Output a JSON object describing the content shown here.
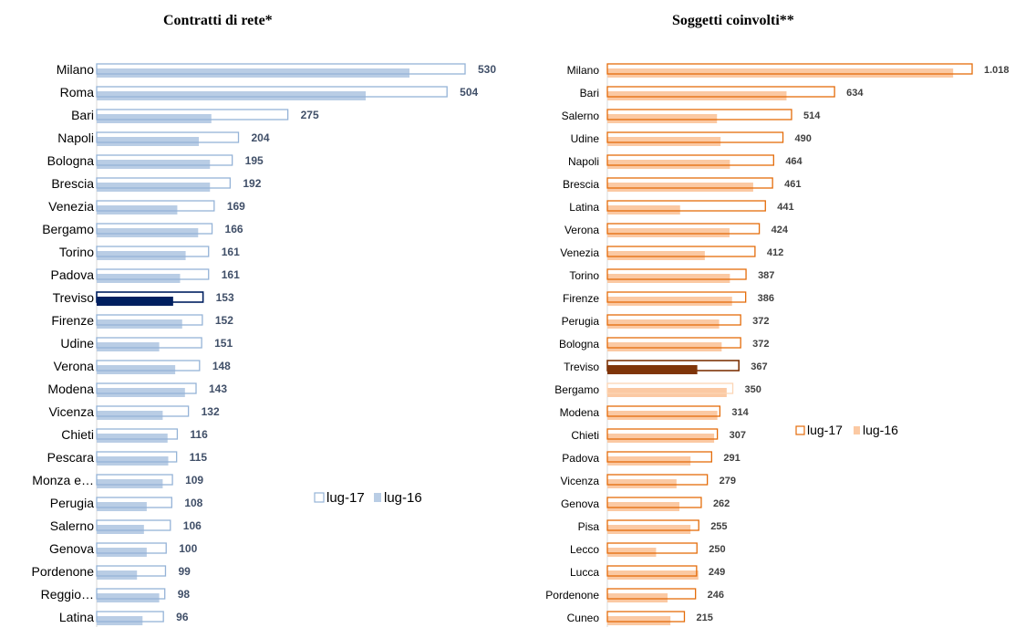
{
  "chart_data": [
    {
      "type": "bar",
      "orientation": "horizontal",
      "title": "Contratti di rete*",
      "categories": [
        "Milano",
        "Roma",
        "Bari",
        "Napoli",
        "Bologna",
        "Brescia",
        "Venezia",
        "Bergamo",
        "Torino",
        "Padova",
        "Treviso",
        "Firenze",
        "Udine",
        "Verona",
        "Modena",
        "Vicenza",
        "Chieti",
        "Pescara",
        "Monza e…",
        "Perugia",
        "Salerno",
        "Genova",
        "Pordenone",
        "Reggio…",
        "Latina"
      ],
      "series": [
        {
          "name": "lug-17",
          "values": [
            530,
            504,
            275,
            204,
            195,
            192,
            169,
            166,
            161,
            161,
            153,
            152,
            151,
            148,
            143,
            132,
            116,
            115,
            109,
            108,
            106,
            100,
            99,
            98,
            96
          ]
        },
        {
          "name": "lug-16",
          "values": [
            450,
            387,
            165,
            147,
            163,
            163,
            116,
            146,
            128,
            120,
            110,
            123,
            90,
            113,
            127,
            95,
            102,
            103,
            95,
            72,
            68,
            72,
            58,
            90,
            66
          ]
        }
      ],
      "value_labels": [
        "530",
        "504",
        "275",
        "204",
        "195",
        "192",
        "169",
        "166",
        "161",
        "161",
        "153",
        "152",
        "151",
        "148",
        "143",
        "132",
        "116",
        "115",
        "109",
        "108",
        "106",
        "100",
        "99",
        "98",
        "96"
      ],
      "highlight": "Treviso",
      "legend_position": "right",
      "colors": {
        "lug17_border": "#95b3d7",
        "lug16_fill": "#b9cde5",
        "highlight_border": "#002060",
        "highlight_fill": "#002060",
        "label": "#404f68"
      }
    },
    {
      "type": "bar",
      "orientation": "horizontal",
      "title": "Soggetti coinvolti**",
      "categories": [
        "Milano",
        "Bari",
        "Salerno",
        "Udine",
        "Napoli",
        "Brescia",
        "Latina",
        "Verona",
        "Venezia",
        "Torino",
        "Firenze",
        "Perugia",
        "Bologna",
        "Treviso",
        "Bergamo",
        "Modena",
        "Chieti",
        "Padova",
        "Vicenza",
        "Genova",
        "Pisa",
        "Lecco",
        "Lucca",
        "Pordenone",
        "Cuneo"
      ],
      "series": [
        {
          "name": "lug-17",
          "values": [
            1018,
            634,
            514,
            490,
            464,
            461,
            441,
            424,
            412,
            387,
            386,
            372,
            372,
            367,
            350,
            314,
            307,
            291,
            279,
            262,
            255,
            250,
            249,
            246,
            215
          ]
        },
        {
          "name": "lug-16",
          "values": [
            965,
            500,
            306,
            316,
            342,
            407,
            203,
            341,
            272,
            342,
            348,
            312,
            319,
            251,
            333,
            307,
            298,
            232,
            193,
            201,
            232,
            136,
            254,
            168,
            176
          ]
        }
      ],
      "value_labels": [
        "1.018",
        "634",
        "514",
        "490",
        "464",
        "461",
        "441",
        "424",
        "412",
        "387",
        "386",
        "372",
        "372",
        "367",
        "350",
        "314",
        "307",
        "291",
        "279",
        "262",
        "255",
        "250",
        "249",
        "246",
        "215"
      ],
      "highlight": "Treviso",
      "legend_position": "right",
      "colors": {
        "lug17_border": "#e46c0a",
        "lug16_fill": "#fbc9a3",
        "highlight_border": "#7f3509",
        "highlight_fill": "#7f3509",
        "bergamo_border": "#fcd5b5",
        "label": "#404040"
      }
    }
  ]
}
